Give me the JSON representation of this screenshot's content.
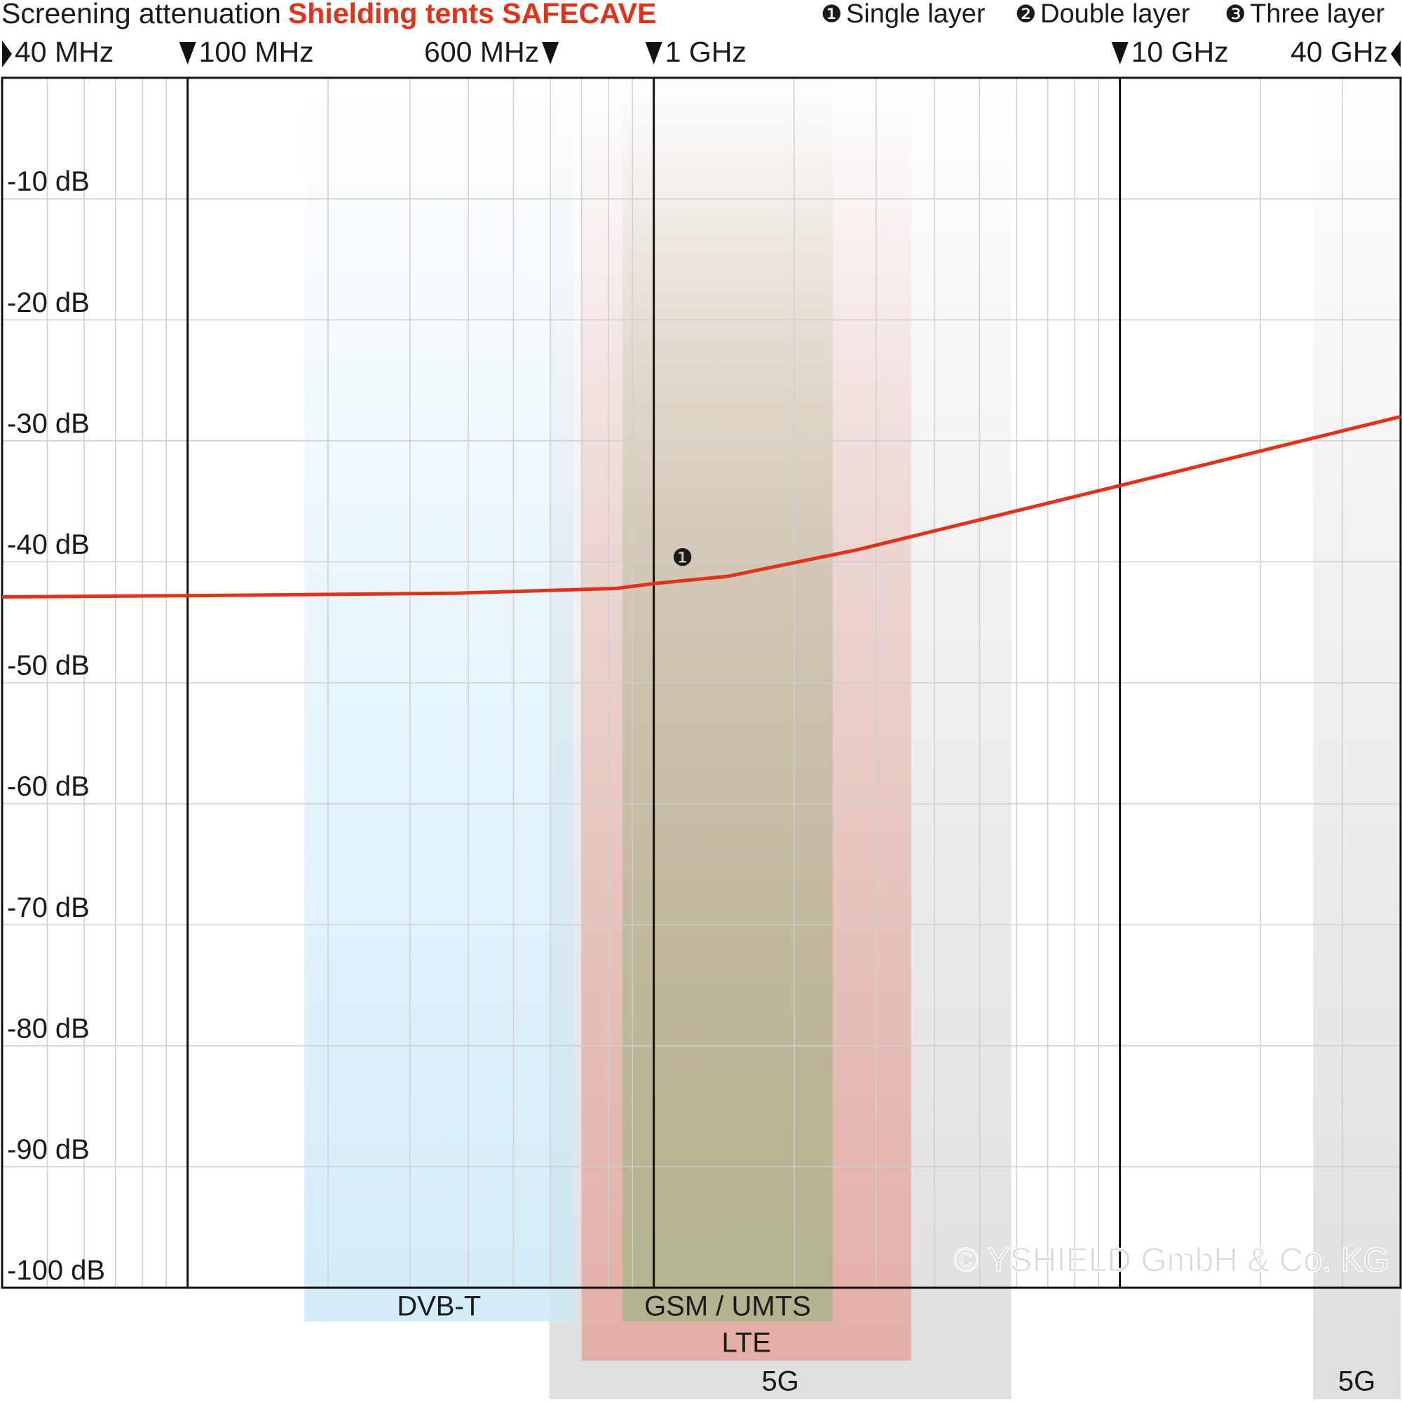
{
  "chart_data": {
    "type": "line",
    "title": "Screening attenuation",
    "subtitle": "Shielding tents SAFECAVE",
    "subtitle_color": "#e2321b",
    "legend": [
      {
        "symbol": "❶",
        "label": "Single layer"
      },
      {
        "symbol": "❷",
        "label": "Double layer"
      },
      {
        "symbol": "❸",
        "label": "Three layer"
      }
    ],
    "x": [
      40,
      100,
      376,
      832,
      1000,
      1443,
      2737,
      10000,
      40000
    ],
    "series": [
      {
        "marker": "❶",
        "color": "#e2321b",
        "values": [
          -42.9,
          -42.8,
          -42.6,
          -42.2,
          -41.8,
          -41.2,
          -39.0,
          -33.7,
          -28.0
        ]
      }
    ],
    "xlog": true,
    "xlim": [
      40,
      40000
    ],
    "ylim": [
      -100,
      0
    ],
    "xticks": [
      {
        "value": 40,
        "label": "40 MHz"
      },
      {
        "value": 100,
        "label": "100 MHz"
      },
      {
        "value": 600,
        "label": "600 MHz"
      },
      {
        "value": 1000,
        "label": "1 GHz"
      },
      {
        "value": 10000,
        "label": "10 GHz"
      },
      {
        "value": 40000,
        "label": "40 GHz"
      }
    ],
    "xgrid_minor": [
      50,
      60,
      70,
      80,
      90,
      200,
      300,
      400,
      500,
      600,
      700,
      800,
      900,
      2000,
      3000,
      4000,
      5000,
      6000,
      7000,
      8000,
      9000,
      20000,
      30000
    ],
    "yticks": [
      {
        "value": -10,
        "label": "-10 dB"
      },
      {
        "value": -20,
        "label": "-20 dB"
      },
      {
        "value": -30,
        "label": "-30 dB"
      },
      {
        "value": -40,
        "label": "-40 dB"
      },
      {
        "value": -50,
        "label": "-50 dB"
      },
      {
        "value": -60,
        "label": "-60 dB"
      },
      {
        "value": -70,
        "label": "-70 dB"
      },
      {
        "value": -80,
        "label": "-80 dB"
      },
      {
        "value": -90,
        "label": "-90 dB"
      },
      {
        "value": -100,
        "label": "-100 dB"
      }
    ],
    "grid": true,
    "bands": [
      {
        "name": "5G",
        "range": [
          597,
          5846
        ],
        "color": "#d9d9d9"
      },
      {
        "name": "5G",
        "range": [
          25960,
          40000
        ],
        "color": "#d9d9d9"
      },
      {
        "name": "LTE",
        "range": [
          700,
          3565
        ],
        "color": "#e4a69c"
      },
      {
        "name": "GSM / UMTS",
        "range": [
          857,
          2420
        ],
        "color": "#a9b48a"
      },
      {
        "name": "DVB-T",
        "range": [
          178,
          673
        ],
        "color": "#cbe9f8"
      }
    ],
    "copyright": "© YSHIELD GmbH & Co. KG"
  }
}
